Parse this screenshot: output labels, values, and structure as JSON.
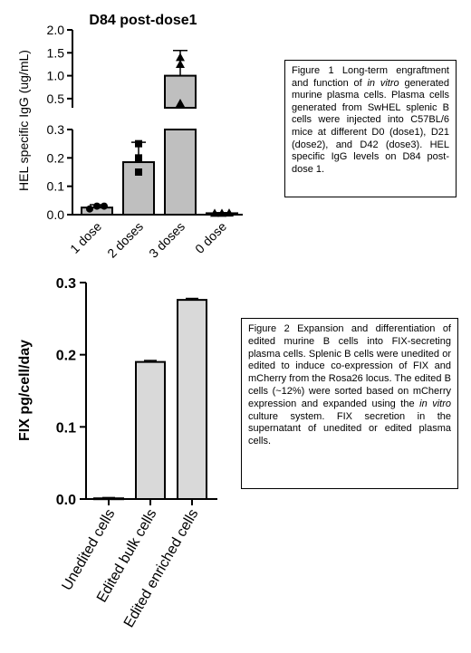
{
  "chart_data": [
    {
      "type": "bar",
      "title": "D84 post-dose1",
      "ylabel": "HEL specific IgG (ug/mL)",
      "categories": [
        "1 dose",
        "2 doses",
        "3 doses",
        "0 dose"
      ],
      "values": [
        0.025,
        0.185,
        1.0,
        0.005
      ],
      "errors": [
        0.01,
        0.07,
        0.55,
        0.002
      ],
      "points": [
        [
          0.02,
          0.03,
          0.03
        ],
        [
          0.15,
          0.2,
          0.25
        ],
        [
          0.4,
          1.25,
          1.4
        ],
        [
          0.005,
          0.005,
          0.006
        ]
      ],
      "point_markers": [
        "circle",
        "square",
        "triangle",
        "triangle"
      ],
      "bar_colors": [
        "#bfbfbf",
        "#bfbfbf",
        "#bfbfbf",
        "#bfbfbf"
      ],
      "y_axis_broken": true,
      "y_lower_range": [
        0,
        0.3
      ],
      "y_upper_range": [
        0.3,
        2.0
      ],
      "y_lower_ticks": [
        "0.0",
        "0.1",
        "0.2",
        "0.3"
      ],
      "y_upper_ticks": [
        "0.5",
        "1.0",
        "1.5",
        "2.0"
      ]
    },
    {
      "type": "bar",
      "ylabel": "FIX pg/cell/day",
      "categories": [
        "Unedited cells",
        "Edited bulk cells",
        "Edited enriched cells"
      ],
      "values": [
        0.001,
        0.19,
        0.276
      ],
      "errors": [
        0.001,
        0.002,
        0.002
      ],
      "ylim": [
        0,
        0.3
      ],
      "y_ticks": [
        "0.0",
        "0.1",
        "0.2",
        "0.3"
      ],
      "bar_fill": "#d9d9d9"
    }
  ],
  "captions": {
    "figure1": {
      "before": "Figure 1 Long-term engraftment and function of ",
      "italic": "in vitro",
      "after": " generated murine plasma cells. Plasma cells generated from SwHEL splenic B cells were injected into C57BL/6 mice at different D0 (dose1), D21 (dose2), and D42 (dose3). HEL specific IgG levels on D84 post-dose 1."
    },
    "figure2": {
      "before": "Figure 2 Expansion and differentiation of edited murine B cells into FIX-secreting plasma cells. Splenic B cells were unedited or edited to induce co-expression of FIX and mCherry from the Rosa26 locus. The edited B cells (~12%) were sorted based on mCherry expression and expanded using the ",
      "italic": "in vitro",
      "after": " culture system.  FIX secretion in the supernatant of unedited or edited plasma cells."
    }
  }
}
